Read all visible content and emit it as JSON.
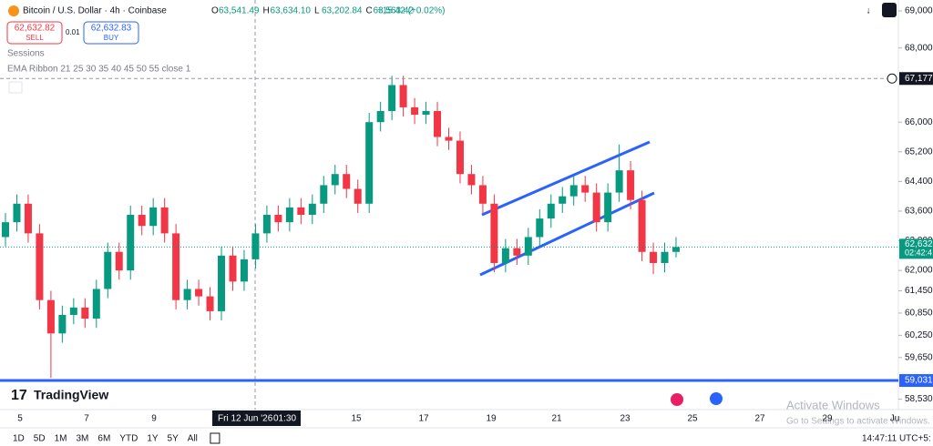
{
  "header": {
    "symbol": "Bitcoin / U.S. Dollar · 4h · Coinbase",
    "ohlc": [
      {
        "key": "O",
        "value": "63,541.49"
      },
      {
        "key": "H",
        "value": "63,634.10"
      },
      {
        "key": "L",
        "value": "63,202.84"
      },
      {
        "key": "C",
        "value": "63,563.42"
      }
    ],
    "change": "+15.42 (+0.02%)"
  },
  "trade": {
    "sell_price": "62,632.82",
    "sell": "SELL",
    "qty": "0.01",
    "buy_price": "62,632.83",
    "buy": "BUY"
  },
  "indicators": [
    "Sessions",
    "EMA Ribbon 21 25 30 35 40 45 50 55 close 1"
  ],
  "logo": "TradingView",
  "chart_data": {
    "type": "candlestick",
    "open": [
      62900,
      63300,
      63800,
      63000,
      61200,
      60300,
      60800,
      61000,
      60700,
      61500,
      62500,
      62000,
      63500,
      63200,
      63700,
      63000,
      61200,
      61500,
      61300,
      60900,
      62400,
      61700,
      62300,
      63000,
      63500,
      63300,
      63700,
      63500,
      63800,
      64300,
      64600,
      64200,
      63800,
      66000,
      66300,
      67000,
      66400,
      66200,
      66300,
      65600,
      65500,
      64600,
      64300,
      63800,
      62200,
      62600,
      62400,
      62900,
      63400,
      63800,
      64000,
      64300,
      64100,
      63300,
      64100,
      64700,
      63900,
      62500,
      62200,
      62500
    ],
    "high": [
      63550,
      64050,
      64050,
      63250,
      61450,
      61050,
      61250,
      61250,
      61750,
      62750,
      62750,
      63750,
      63750,
      63950,
      63950,
      63250,
      61750,
      61750,
      61550,
      62650,
      62650,
      62550,
      63250,
      63750,
      63750,
      63950,
      63950,
      64050,
      64550,
      64850,
      64850,
      64450,
      66250,
      66550,
      67250,
      67250,
      66650,
      66550,
      66550,
      65850,
      65750,
      64850,
      64550,
      64050,
      62850,
      62850,
      63150,
      63650,
      64050,
      64250,
      64550,
      64550,
      64350,
      64350,
      65400,
      64950,
      64150,
      62750,
      62750,
      62900
    ],
    "low": [
      62650,
      63050,
      62750,
      60950,
      59100,
      60050,
      60550,
      60450,
      60450,
      61250,
      61750,
      61750,
      62950,
      62950,
      62750,
      60950,
      60950,
      61050,
      60650,
      60650,
      61450,
      61450,
      62050,
      62750,
      63050,
      63050,
      63250,
      63250,
      63550,
      64050,
      63950,
      63550,
      63550,
      65750,
      66050,
      66150,
      65950,
      65950,
      65350,
      65250,
      64350,
      64050,
      63550,
      61950,
      61950,
      62150,
      62150,
      62650,
      63150,
      63550,
      63750,
      63850,
      63050,
      63050,
      63850,
      63650,
      62250,
      61900,
      61950,
      62350
    ],
    "close": [
      63300,
      63800,
      63000,
      61200,
      60300,
      60800,
      61000,
      60700,
      61500,
      62500,
      62000,
      63500,
      63200,
      63700,
      63000,
      61200,
      61500,
      61300,
      60900,
      62400,
      61700,
      62300,
      63000,
      63500,
      63300,
      63700,
      63500,
      63800,
      64300,
      64600,
      64200,
      63800,
      66000,
      66300,
      67000,
      66400,
      66200,
      66300,
      65600,
      65500,
      64600,
      64300,
      63800,
      62200,
      62600,
      62400,
      62900,
      63400,
      63800,
      64000,
      64300,
      64100,
      63300,
      64100,
      64700,
      63900,
      62500,
      62200,
      62500,
      62632
    ],
    "up_color": "#089981",
    "down_color": "#f23645",
    "ylim": [
      58246,
      69295
    ],
    "yticks": [
      {
        "value": 69000,
        "label": "69,000."
      },
      {
        "value": 68000,
        "label": "68,000."
      },
      {
        "value": 66000,
        "label": "66,000."
      },
      {
        "value": 65200,
        "label": "65,200."
      },
      {
        "value": 64400,
        "label": "64,400."
      },
      {
        "value": 63600,
        "label": "63,600."
      },
      {
        "value": 62800,
        "label": "62,800."
      },
      {
        "value": 62000,
        "label": "62,000."
      },
      {
        "value": 61450,
        "label": "61,450."
      },
      {
        "value": 60850,
        "label": "60,850."
      },
      {
        "value": 60250,
        "label": "60,250."
      },
      {
        "value": 59650,
        "label": "59,650."
      },
      {
        "value": 58530,
        "label": "58,530."
      }
    ],
    "price_line": {
      "value": 59031,
      "label": "59,031.",
      "color": "#2962ff"
    },
    "crosshair": {
      "value": 67177,
      "label": "67,177.",
      "date": "Fri 12 Jun '26",
      "time": "01:30"
    },
    "last_price": {
      "value": 62632,
      "label": "62,632.",
      "countdown": "02:42:4"
    },
    "x_labels": [
      "5",
      "7",
      "9",
      "15",
      "17",
      "19",
      "21",
      "23",
      "25",
      "27",
      "29",
      "Ju"
    ]
  },
  "toolbar": {
    "ranges": [
      "1D",
      "5D",
      "1M",
      "3M",
      "6M",
      "YTD",
      "1Y",
      "5Y",
      "All"
    ],
    "clock": "14:47:11 UTC+5:"
  },
  "watermark": {
    "title": "Activate Windows",
    "text": "Go to Settings to activate Windows."
  }
}
